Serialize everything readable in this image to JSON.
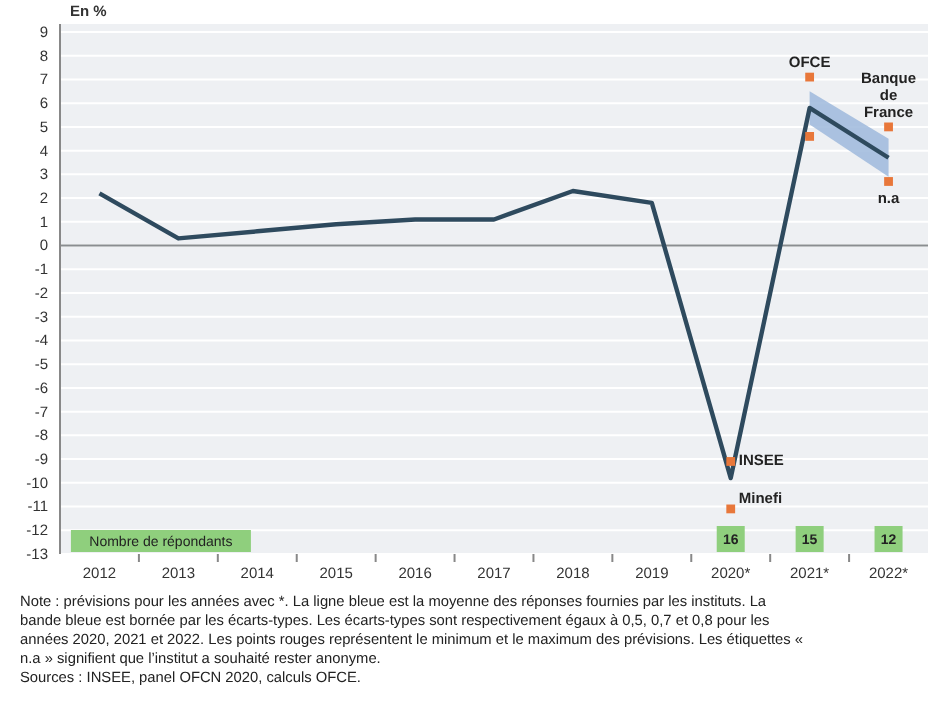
{
  "chart_data": {
    "type": "line",
    "ylabel": "En %",
    "categories": [
      "2012",
      "2013",
      "2014",
      "2015",
      "2016",
      "2017",
      "2018",
      "2019",
      "2020*",
      "2021*",
      "2022*"
    ],
    "series": [
      {
        "color": "#2e4a5e",
        "values": [
          2.2,
          0.3,
          0.6,
          0.9,
          1.1,
          1.1,
          2.3,
          1.8,
          -9.8,
          5.8,
          3.7
        ],
        "lower": [
          null,
          null,
          null,
          null,
          null,
          null,
          null,
          null,
          null,
          5.1,
          2.9
        ],
        "upper": [
          null,
          null,
          null,
          null,
          null,
          null,
          null,
          null,
          null,
          6.5,
          4.5
        ]
      },
      {
        "type": "scatter",
        "marker": "square",
        "color": "#e8773a",
        "x": [
          "2020*",
          "2020*",
          "2021*",
          "2021*",
          "2022*",
          "2022*"
        ],
        "values": [
          -9.1,
          -11.1,
          7.1,
          4.6,
          5.0,
          2.7
        ],
        "value_labels": [
          "INSEE",
          "Minefi",
          "OFCE",
          null,
          "Banque de France",
          "n.a"
        ]
      }
    ],
    "ylim": [
      -13,
      9
    ],
    "yticks": [
      -13,
      -12,
      -11,
      -10,
      -9,
      -8,
      -7,
      -6,
      -5,
      -4,
      -3,
      -2,
      -1,
      0,
      1,
      2,
      3,
      4,
      5,
      6,
      7,
      8,
      9
    ],
    "grid": "y",
    "marker": "none",
    "line_style": "solid",
    "ref_lines": [
      {
        "axis": "y",
        "value": 0,
        "color": "#8a8d90"
      }
    ],
    "annotations": [
      "Nombre de répondants",
      {
        "text": "16",
        "x": "2020*"
      },
      {
        "text": "15",
        "x": "2021*"
      },
      {
        "text": "12",
        "x": "2022*"
      },
      "Note : prévisions pour les années avec *. La ligne bleue est la moyenne des réponses fournies par les instituts. La bande bleue est bornée par les écarts-types. Les écarts-types sont respectivement égaux à 0,5, 0,7 et 0,8 pour les années 2020, 2021 et 2022. Les points rouges représentent le minimum et le maximum des prévisions. Les étiquettes « n.a » signifient que l’institut a souhaité rester anonyme.",
      "Sources : INSEE, panel OFCN 2020, calculs OFCE."
    ]
  }
}
